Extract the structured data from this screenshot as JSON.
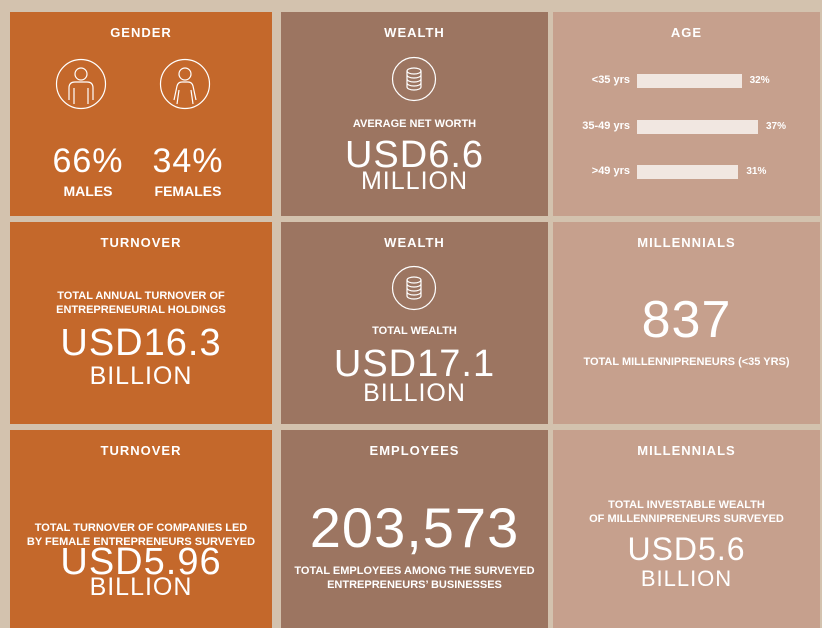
{
  "panels": [
    {
      "title": "GENDER",
      "stats": [
        {
          "value": "66%",
          "label": "MALES"
        },
        {
          "value": "34%",
          "label": "FEMALES"
        }
      ]
    },
    {
      "title": "WEALTH",
      "caption": [
        "AVERAGE NET WORTH"
      ],
      "figure": "USD6.6",
      "unit": "MILLION"
    },
    {
      "title": "AGE",
      "chart_data": {
        "type": "bar",
        "orientation": "horizontal",
        "categories": [
          "<35 yrs",
          "35-49 yrs",
          ">49 yrs"
        ],
        "values": [
          32,
          37,
          31
        ],
        "value_labels": [
          "32%",
          "37%",
          "31%"
        ],
        "color": "#f1e7e1"
      }
    },
    {
      "title": "TURNOVER",
      "caption": [
        "TOTAL ANNUAL TURNOVER OF",
        "ENTREPRENEURIAL HOLDINGS"
      ],
      "figure": "USD16.3",
      "unit": "BILLION"
    },
    {
      "title": "WEALTH",
      "caption": [
        "TOTAL WEALTH"
      ],
      "figure": "USD17.1",
      "unit": "BILLION"
    },
    {
      "title": "MILLENNIALS",
      "figure": "837",
      "caption": [
        "TOTAL MILLENNIPRENEURS (<35 YRS)"
      ]
    },
    {
      "title": "TURNOVER",
      "caption": [
        "TOTAL TURNOVER OF COMPANIES LED",
        "BY FEMALE ENTREPRENEURS SURVEYED"
      ],
      "figure": "USD5.96",
      "unit": "BILLION"
    },
    {
      "title": "EMPLOYEES",
      "figure": "203,573",
      "caption": [
        "TOTAL EMPLOYEES AMONG THE SURVEYED",
        "ENTREPRENEURS’ BUSINESSES"
      ]
    },
    {
      "title": "MILLENNIALS",
      "caption": [
        "TOTAL INVESTABLE WEALTH",
        "OF MILLENNIPRENEURS SURVEYED"
      ],
      "figure": "USD5.6",
      "unit": "BILLION"
    }
  ]
}
